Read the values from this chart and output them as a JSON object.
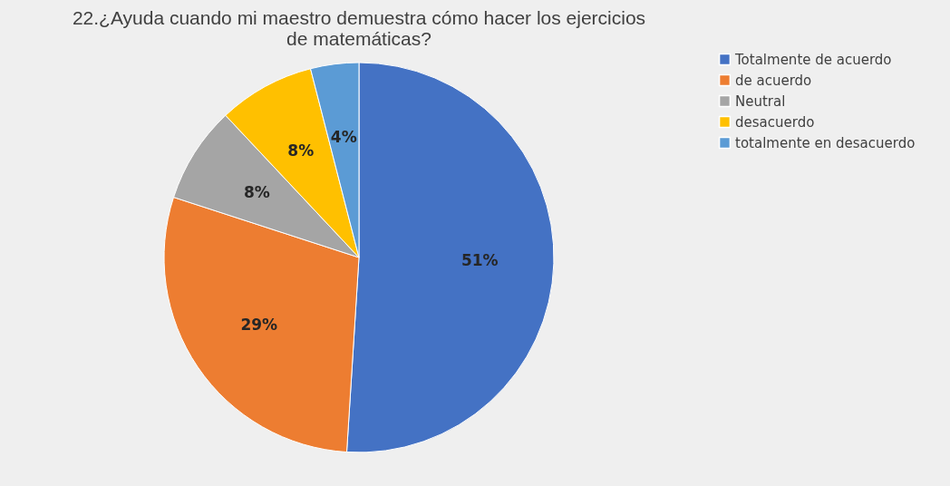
{
  "chart_data": {
    "type": "pie",
    "title": [
      "22.¿Ayuda cuando mi maestro demuestra cómo hacer los ejercicios",
      "de matemáticas?"
    ],
    "categories": [
      "Totalmente de acuerdo",
      "de acuerdo",
      "Neutral",
      "desacuerdo",
      "totalmente en desacuerdo"
    ],
    "values": [
      51,
      29,
      8,
      8,
      4
    ],
    "colors": [
      "#4472c4",
      "#ed7d31",
      "#a5a5a5",
      "#ffc000",
      "#5b9bd5"
    ],
    "value_labels": [
      "51%",
      "29%",
      "8%",
      "8%",
      "4%"
    ],
    "legend": "right"
  }
}
